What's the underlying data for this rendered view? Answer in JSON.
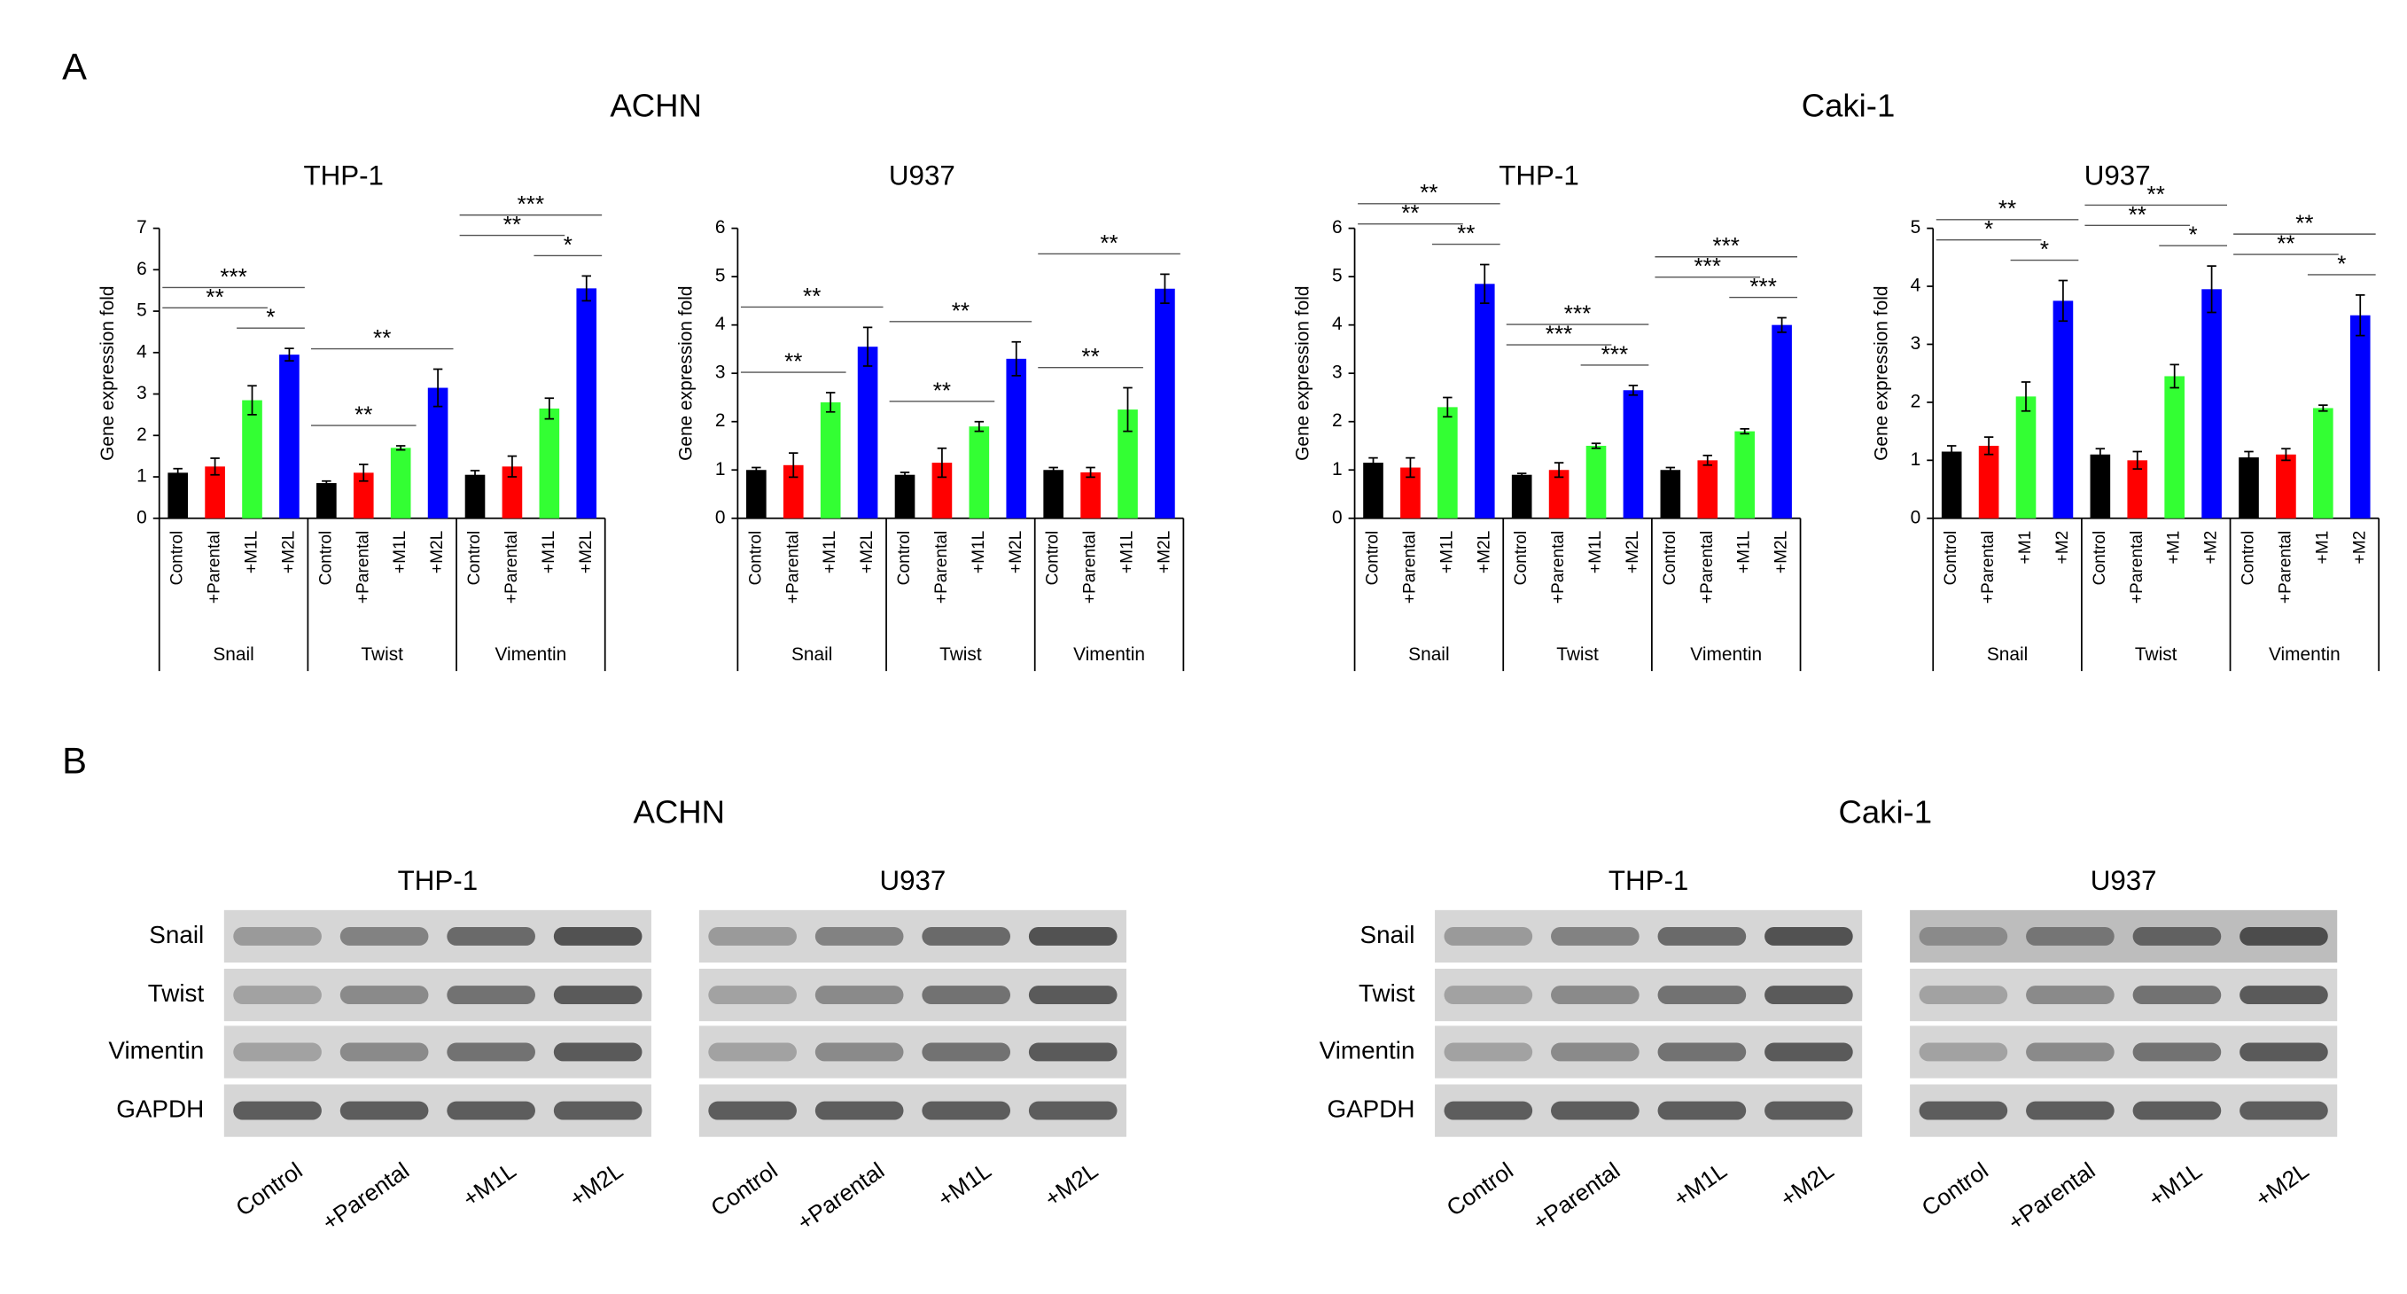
{
  "panel_a": {
    "label": "A",
    "headers": [
      "ACHN",
      "Caki-1"
    ]
  },
  "chart_data": [
    {
      "type": "bar",
      "title": "THP-1",
      "ylabel": "Gene expression fold",
      "categories": [
        "Snail",
        "Twist",
        "Vimentin"
      ],
      "ylim": [
        0,
        7
      ],
      "yticks": [
        0,
        1,
        2,
        3,
        4,
        5,
        6,
        7
      ],
      "series": [
        {
          "name": "Control",
          "color": "#000000",
          "values": [
            1.1,
            0.85,
            1.05
          ],
          "errors": [
            0.1,
            0.05,
            0.1
          ]
        },
        {
          "name": "+Parental",
          "color": "#ff0000",
          "values": [
            1.25,
            1.1,
            1.25
          ],
          "errors": [
            0.2,
            0.2,
            0.25
          ]
        },
        {
          "name": "+M1L",
          "color": "#33ff33",
          "values": [
            2.85,
            1.7,
            2.65
          ],
          "errors": [
            0.35,
            0.05,
            0.25
          ]
        },
        {
          "name": "+M2L",
          "color": "#0000ff",
          "values": [
            3.95,
            3.15,
            5.55
          ],
          "errors": [
            0.15,
            0.45,
            0.3
          ]
        }
      ],
      "annotations": [
        {
          "category": 0,
          "from": 0,
          "to": 2,
          "text": "**"
        },
        {
          "category": 0,
          "from": 2,
          "to": 3,
          "text": "*"
        },
        {
          "category": 0,
          "from": 0,
          "to": 3,
          "text": "***"
        },
        {
          "category": 1,
          "from": 0,
          "to": 2,
          "text": "**"
        },
        {
          "category": 1,
          "from": 0,
          "to": 3,
          "text": "**"
        },
        {
          "category": 2,
          "from": 0,
          "to": 2,
          "text": "**"
        },
        {
          "category": 2,
          "from": 2,
          "to": 3,
          "text": "*"
        },
        {
          "category": 2,
          "from": 0,
          "to": 3,
          "text": "***"
        }
      ]
    },
    {
      "type": "bar",
      "title": "U937",
      "ylabel": "Gene expression fold",
      "categories": [
        "Snail",
        "Twist",
        "Vimentin"
      ],
      "ylim": [
        0,
        6
      ],
      "yticks": [
        0,
        1,
        2,
        3,
        4,
        5,
        6
      ],
      "series": [
        {
          "name": "Control",
          "color": "#000000",
          "values": [
            1.0,
            0.9,
            1.0
          ],
          "errors": [
            0.05,
            0.05,
            0.05
          ]
        },
        {
          "name": "+Parental",
          "color": "#ff0000",
          "values": [
            1.1,
            1.15,
            0.95
          ],
          "errors": [
            0.25,
            0.3,
            0.1
          ]
        },
        {
          "name": "+M1L",
          "color": "#33ff33",
          "values": [
            2.4,
            1.9,
            2.25
          ],
          "errors": [
            0.2,
            0.1,
            0.45
          ]
        },
        {
          "name": "+M2L",
          "color": "#0000ff",
          "values": [
            3.55,
            3.3,
            4.75
          ],
          "errors": [
            0.4,
            0.35,
            0.3
          ]
        }
      ],
      "annotations": [
        {
          "category": 0,
          "from": 0,
          "to": 2,
          "text": "**"
        },
        {
          "category": 0,
          "from": 0,
          "to": 3,
          "text": "**"
        },
        {
          "category": 1,
          "from": 0,
          "to": 2,
          "text": "**"
        },
        {
          "category": 1,
          "from": 0,
          "to": 3,
          "text": "**"
        },
        {
          "category": 2,
          "from": 0,
          "to": 2,
          "text": "**"
        },
        {
          "category": 2,
          "from": 0,
          "to": 3,
          "text": "**"
        }
      ]
    },
    {
      "type": "bar",
      "title": "THP-1",
      "ylabel": "Gene expression fold",
      "categories": [
        "Snail",
        "Twist",
        "Vimentin"
      ],
      "ylim": [
        0,
        6
      ],
      "yticks": [
        0,
        1,
        2,
        3,
        4,
        5,
        6
      ],
      "series": [
        {
          "name": "Control",
          "color": "#000000",
          "values": [
            1.15,
            0.9,
            1.0
          ],
          "errors": [
            0.1,
            0.03,
            0.05
          ]
        },
        {
          "name": "+Parental",
          "color": "#ff0000",
          "values": [
            1.05,
            1.0,
            1.2
          ],
          "errors": [
            0.2,
            0.15,
            0.1
          ]
        },
        {
          "name": "+M1L",
          "color": "#33ff33",
          "values": [
            2.3,
            1.5,
            1.8
          ],
          "errors": [
            0.2,
            0.05,
            0.05
          ]
        },
        {
          "name": "+M2L",
          "color": "#0000ff",
          "values": [
            4.85,
            2.65,
            4.0
          ],
          "errors": [
            0.4,
            0.1,
            0.15
          ]
        }
      ],
      "annotations": [
        {
          "category": 0,
          "from": 0,
          "to": 2,
          "text": "**"
        },
        {
          "category": 0,
          "from": 2,
          "to": 3,
          "text": "**"
        },
        {
          "category": 0,
          "from": 0,
          "to": 3,
          "text": "**"
        },
        {
          "category": 1,
          "from": 0,
          "to": 2,
          "text": "***"
        },
        {
          "category": 1,
          "from": 2,
          "to": 3,
          "text": "***"
        },
        {
          "category": 1,
          "from": 0,
          "to": 3,
          "text": "***"
        },
        {
          "category": 2,
          "from": 0,
          "to": 2,
          "text": "***"
        },
        {
          "category": 2,
          "from": 2,
          "to": 3,
          "text": "***"
        },
        {
          "category": 2,
          "from": 0,
          "to": 3,
          "text": "***"
        }
      ]
    },
    {
      "type": "bar",
      "title": "U937",
      "ylabel": "Gene expression fold",
      "categories": [
        "Snail",
        "Twist",
        "Vimentin"
      ],
      "ylim": [
        0,
        5
      ],
      "yticks": [
        0,
        1,
        2,
        3,
        4,
        5
      ],
      "series": [
        {
          "name": "Control",
          "color": "#000000",
          "values": [
            1.15,
            1.1,
            1.05
          ],
          "errors": [
            0.1,
            0.1,
            0.1
          ]
        },
        {
          "name": "+Parental",
          "color": "#ff0000",
          "values": [
            1.25,
            1.0,
            1.1
          ],
          "errors": [
            0.15,
            0.15,
            0.1
          ]
        },
        {
          "name": "+M1",
          "color": "#33ff33",
          "values": [
            2.1,
            2.45,
            1.9
          ],
          "errors": [
            0.25,
            0.2,
            0.05
          ]
        },
        {
          "name": "+M2",
          "color": "#0000ff",
          "values": [
            3.75,
            3.95,
            3.5
          ],
          "errors": [
            0.35,
            0.4,
            0.35
          ]
        }
      ],
      "annotations": [
        {
          "category": 0,
          "from": 0,
          "to": 2,
          "text": "*"
        },
        {
          "category": 0,
          "from": 2,
          "to": 3,
          "text": "*"
        },
        {
          "category": 0,
          "from": 0,
          "to": 3,
          "text": "**"
        },
        {
          "category": 1,
          "from": 0,
          "to": 2,
          "text": "**"
        },
        {
          "category": 1,
          "from": 2,
          "to": 3,
          "text": "*"
        },
        {
          "category": 1,
          "from": 0,
          "to": 3,
          "text": "**"
        },
        {
          "category": 2,
          "from": 0,
          "to": 2,
          "text": "**"
        },
        {
          "category": 2,
          "from": 2,
          "to": 3,
          "text": "*"
        },
        {
          "category": 2,
          "from": 0,
          "to": 3,
          "text": "**"
        }
      ]
    }
  ],
  "panel_b": {
    "label": "B",
    "headers": [
      {
        "title": "ACHN",
        "blots": [
          {
            "title": "THP-1",
            "rows": [
              "Snail",
              "Twist",
              "Vimentin",
              "GAPDH"
            ],
            "lanes": [
              "Control",
              "+Parental",
              "+M1L",
              "+M2L"
            ]
          },
          {
            "title": "U937",
            "lanes": [
              "Control",
              "+Parental",
              "+M1L",
              "+M2L"
            ]
          }
        ]
      },
      {
        "title": "Caki-1",
        "blots": [
          {
            "title": "THP-1",
            "rows": [
              "Snail",
              "Twist",
              "Vimentin",
              "GAPDH"
            ],
            "lanes": [
              "Control",
              "+Parental",
              "+M1L",
              "+M2L"
            ]
          },
          {
            "title": "U937",
            "lanes": [
              "Control",
              "+Parental",
              "+M1L",
              "+M2L"
            ]
          }
        ]
      }
    ]
  }
}
